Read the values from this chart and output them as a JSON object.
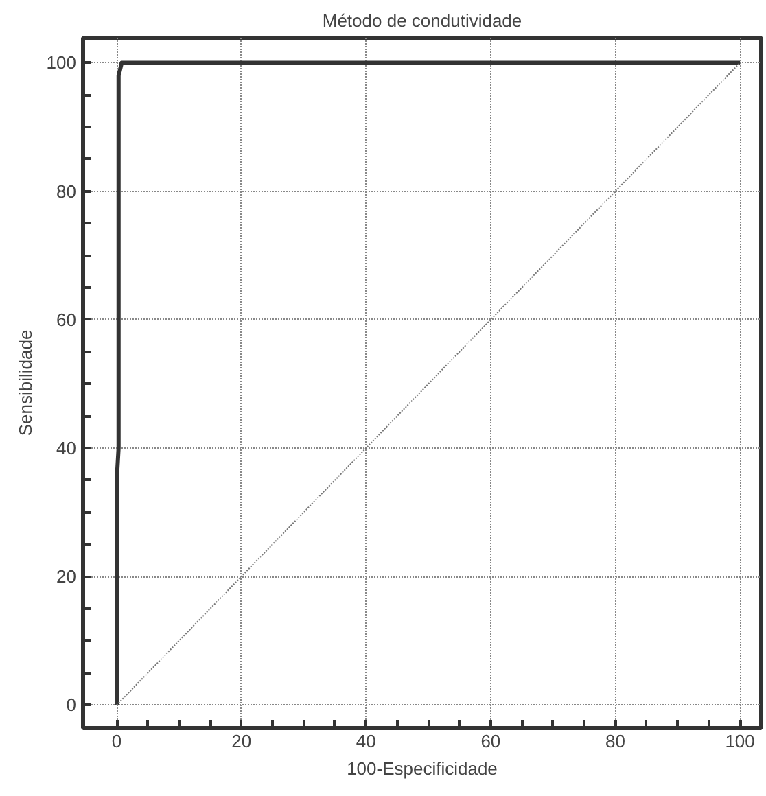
{
  "chart_data": {
    "type": "line",
    "title": "Método de condutividade",
    "xlabel": "100-Especificidade",
    "ylabel": "Sensibilidade",
    "series": [
      {
        "x": [
          0,
          0,
          0.3,
          0.3,
          0.8,
          100
        ],
        "values": [
          0,
          35,
          40,
          98,
          100,
          100
        ],
        "color": "#333333",
        "line_style": "solid"
      },
      {
        "x": [
          0,
          100
        ],
        "values": [
          0,
          100
        ],
        "color": "#777777",
        "line_style": "dotted"
      }
    ],
    "xlim": [
      -5.4,
      103.4
    ],
    "ylim": [
      -3.6,
      103.9
    ],
    "xticks": [
      0,
      20,
      40,
      60,
      80,
      100
    ],
    "yticks": [
      0,
      20,
      40,
      60,
      80,
      100
    ],
    "grid": true
  }
}
